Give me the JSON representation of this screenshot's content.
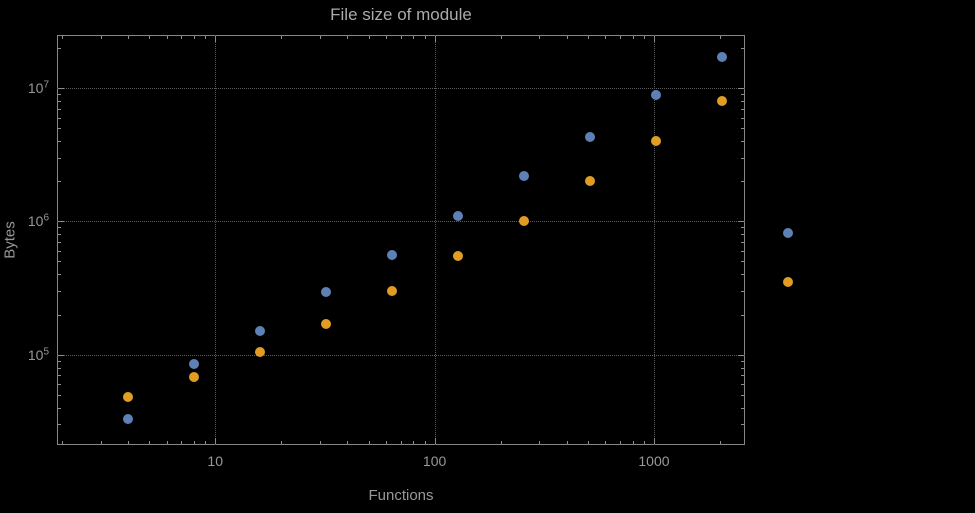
{
  "chart_data": {
    "type": "scatter",
    "title": "File size of module",
    "xlabel": "Functions",
    "ylabel": "Bytes",
    "xscale": "log",
    "yscale": "log",
    "grid": "dotted",
    "legend": "none",
    "xlim": [
      1.9,
      2600
    ],
    "ylim": [
      21000,
      25000000
    ],
    "x": [
      4,
      8,
      16,
      32,
      64,
      128,
      256,
      512,
      1024,
      2048,
      4096
    ],
    "series": [
      {
        "name": "series-blue",
        "color": "#5e81b5",
        "values": [
          33000,
          85000,
          150000,
          295000,
          560000,
          1100000,
          2200000,
          4300000,
          8800000,
          17000000,
          820000
        ]
      },
      {
        "name": "series-orange",
        "color": "#e19c24",
        "values": [
          48000,
          68000,
          105000,
          170000,
          300000,
          550000,
          1000000,
          2000000,
          4000000,
          8000000,
          350000
        ]
      }
    ],
    "xticks": {
      "values": [
        10,
        100,
        1000
      ],
      "labels": [
        "10",
        "100",
        "1000"
      ]
    },
    "yticks": {
      "values": [
        100000,
        1000000,
        10000000
      ],
      "base": "10",
      "exponents": [
        "5",
        "6",
        "7"
      ]
    }
  }
}
